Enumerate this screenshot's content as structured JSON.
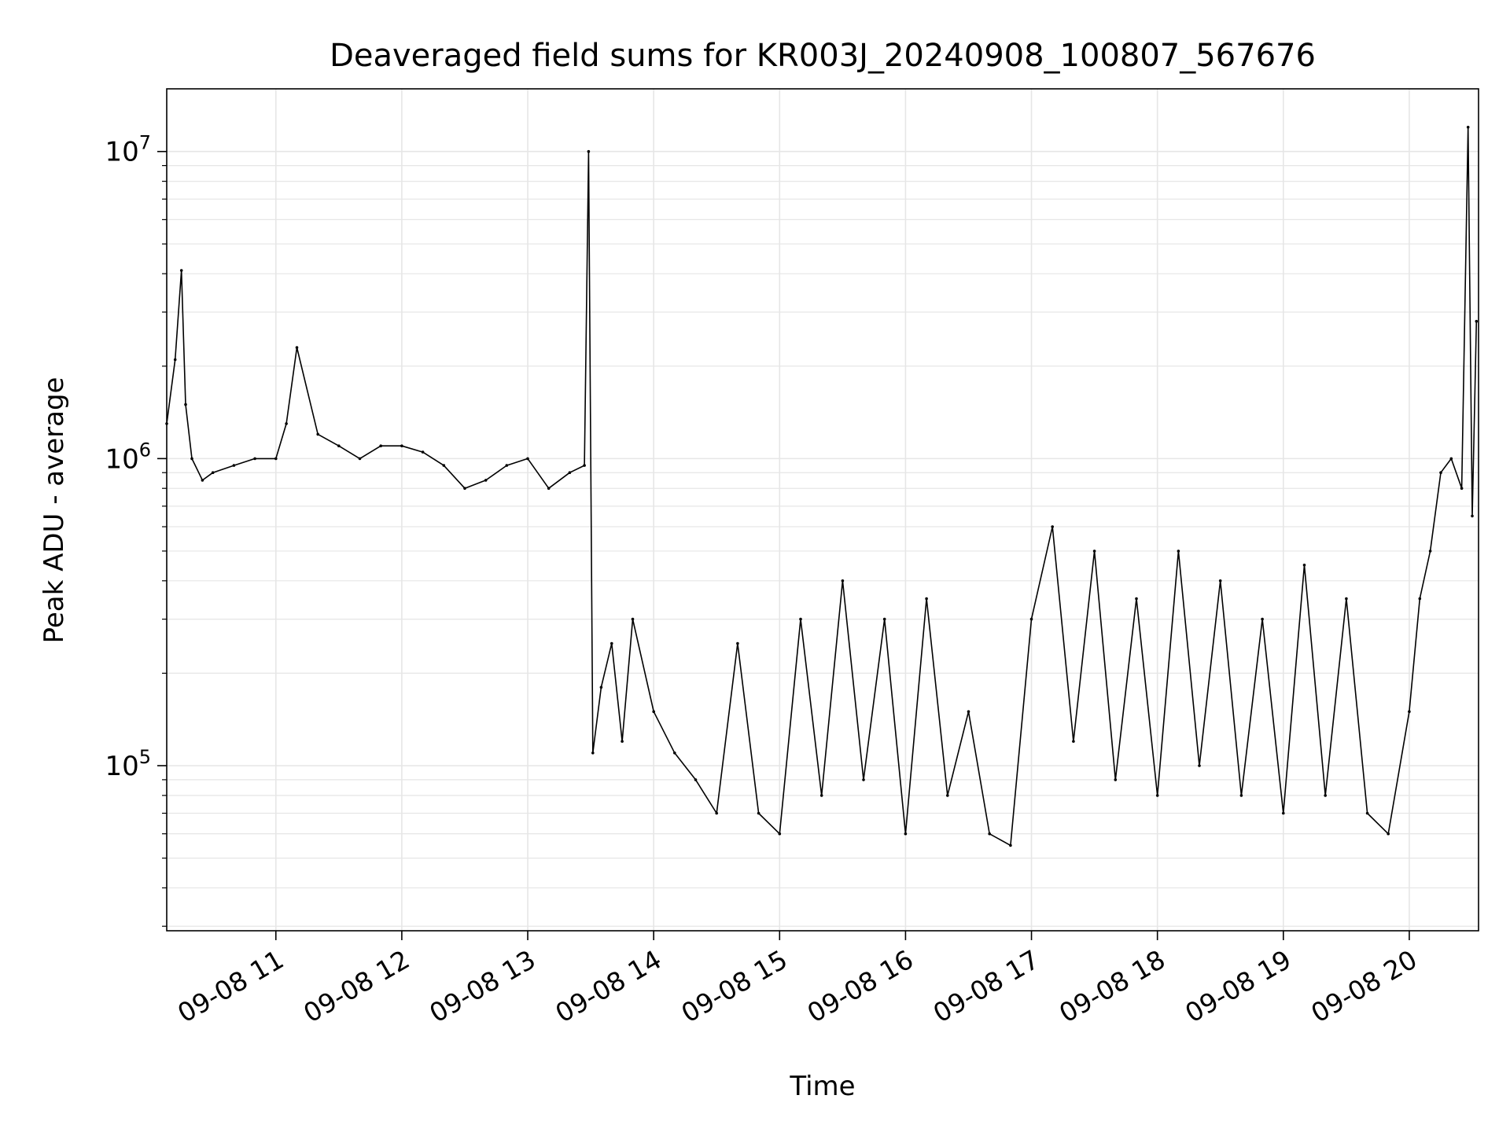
{
  "chart_data": {
    "type": "line",
    "title": "Deaveraged field sums for KR003J_20240908_100807_567676",
    "xlabel": "Time",
    "ylabel": "Peak ADU - average",
    "x_scale": "time",
    "y_scale": "log",
    "xlim": [
      "2024-09-08T10:08:00",
      "2024-09-08T20:33:00"
    ],
    "ylim": [
      29000,
      16000000
    ],
    "x_ticks": [
      "09-08 11",
      "09-08 12",
      "09-08 13",
      "09-08 14",
      "09-08 15",
      "09-08 16",
      "09-08 17",
      "09-08 18",
      "09-08 19",
      "09-08 20"
    ],
    "x_tick_values": [
      "2024-09-08T11:00:00",
      "2024-09-08T12:00:00",
      "2024-09-08T13:00:00",
      "2024-09-08T14:00:00",
      "2024-09-08T15:00:00",
      "2024-09-08T16:00:00",
      "2024-09-08T17:00:00",
      "2024-09-08T18:00:00",
      "2024-09-08T19:00:00",
      "2024-09-08T20:00:00"
    ],
    "y_ticks": [
      {
        "value": 100000,
        "base": "10",
        "exp": "5"
      },
      {
        "value": 1000000,
        "base": "10",
        "exp": "6"
      },
      {
        "value": 10000000,
        "base": "10",
        "exp": "7"
      }
    ],
    "grid": true,
    "line_color": "#000000",
    "grid_color": "#e6e6e6",
    "series": [
      {
        "x": [
          "2024-09-08T10:08:00",
          "2024-09-08T10:12:00",
          "2024-09-08T10:15:00",
          "2024-09-08T10:17:00",
          "2024-09-08T10:20:00",
          "2024-09-08T10:25:00",
          "2024-09-08T10:30:00",
          "2024-09-08T10:40:00",
          "2024-09-08T10:50:00",
          "2024-09-08T11:00:00",
          "2024-09-08T11:05:00",
          "2024-09-08T11:10:00",
          "2024-09-08T11:20:00",
          "2024-09-08T11:30:00",
          "2024-09-08T11:40:00",
          "2024-09-08T11:50:00",
          "2024-09-08T12:00:00",
          "2024-09-08T12:10:00",
          "2024-09-08T12:20:00",
          "2024-09-08T12:30:00",
          "2024-09-08T12:40:00",
          "2024-09-08T12:50:00",
          "2024-09-08T13:00:00",
          "2024-09-08T13:10:00",
          "2024-09-08T13:20:00",
          "2024-09-08T13:27:00",
          "2024-09-08T13:29:00",
          "2024-09-08T13:31:00",
          "2024-09-08T13:35:00",
          "2024-09-08T13:40:00",
          "2024-09-08T13:45:00",
          "2024-09-08T13:50:00",
          "2024-09-08T14:00:00",
          "2024-09-08T14:10:00",
          "2024-09-08T14:20:00",
          "2024-09-08T14:30:00",
          "2024-09-08T14:40:00",
          "2024-09-08T14:50:00",
          "2024-09-08T15:00:00",
          "2024-09-08T15:10:00",
          "2024-09-08T15:20:00",
          "2024-09-08T15:30:00",
          "2024-09-08T15:40:00",
          "2024-09-08T15:50:00",
          "2024-09-08T16:00:00",
          "2024-09-08T16:10:00",
          "2024-09-08T16:20:00",
          "2024-09-08T16:30:00",
          "2024-09-08T16:40:00",
          "2024-09-08T16:50:00",
          "2024-09-08T17:00:00",
          "2024-09-08T17:10:00",
          "2024-09-08T17:20:00",
          "2024-09-08T17:30:00",
          "2024-09-08T17:40:00",
          "2024-09-08T17:50:00",
          "2024-09-08T18:00:00",
          "2024-09-08T18:10:00",
          "2024-09-08T18:20:00",
          "2024-09-08T18:30:00",
          "2024-09-08T18:40:00",
          "2024-09-08T18:50:00",
          "2024-09-08T19:00:00",
          "2024-09-08T19:10:00",
          "2024-09-08T19:20:00",
          "2024-09-08T19:30:00",
          "2024-09-08T19:40:00",
          "2024-09-08T19:50:00",
          "2024-09-08T20:00:00",
          "2024-09-08T20:05:00",
          "2024-09-08T20:10:00",
          "2024-09-08T20:15:00",
          "2024-09-08T20:20:00",
          "2024-09-08T20:25:00",
          "2024-09-08T20:28:00",
          "2024-09-08T20:30:00",
          "2024-09-08T20:32:00"
        ],
        "y": [
          1300000,
          2100000,
          4100000,
          1500000,
          1000000,
          850000,
          900000,
          950000,
          1000000,
          1000000,
          1300000,
          2300000,
          1200000,
          1100000,
          1000000,
          1100000,
          1100000,
          1050000,
          950000,
          800000,
          850000,
          950000,
          1000000,
          800000,
          900000,
          950000,
          10000000,
          110000,
          180000,
          250000,
          120000,
          300000,
          150000,
          110000,
          90000,
          70000,
          250000,
          70000,
          60000,
          300000,
          80000,
          400000,
          90000,
          300000,
          60000,
          350000,
          80000,
          150000,
          60000,
          55000,
          300000,
          600000,
          120000,
          500000,
          90000,
          350000,
          80000,
          500000,
          100000,
          400000,
          80000,
          300000,
          70000,
          450000,
          80000,
          350000,
          70000,
          60000,
          150000,
          350000,
          500000,
          900000,
          1000000,
          800000,
          12000000,
          650000,
          2800000
        ]
      }
    ]
  }
}
